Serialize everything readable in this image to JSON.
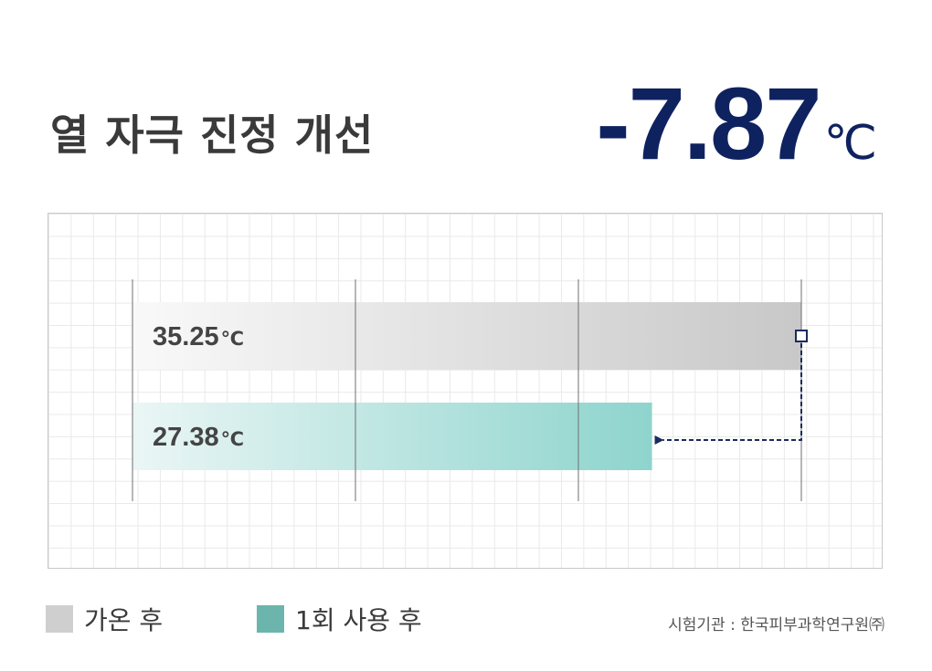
{
  "title": "열 자극 진정 개선",
  "headline": {
    "value": "-7.87",
    "unit": "℃"
  },
  "chart_data": {
    "type": "bar",
    "orientation": "horizontal",
    "unit": "℃",
    "categories": [
      "가온 후",
      "1회 사용 후"
    ],
    "values": [
      35.25,
      27.38
    ],
    "value_labels": [
      "35.25",
      "27.38"
    ],
    "difference": -7.87,
    "grid": true,
    "legend_placement": "bottom-left",
    "colors": [
      "#c8c8c8",
      "#8ed4cd"
    ]
  },
  "legend": [
    {
      "label": "가온 후",
      "color": "#cfcfcf"
    },
    {
      "label": "1회 사용 후",
      "color": "#6bb5ac"
    }
  ],
  "source": "시험기관 : 한국피부과학연구원㈜"
}
